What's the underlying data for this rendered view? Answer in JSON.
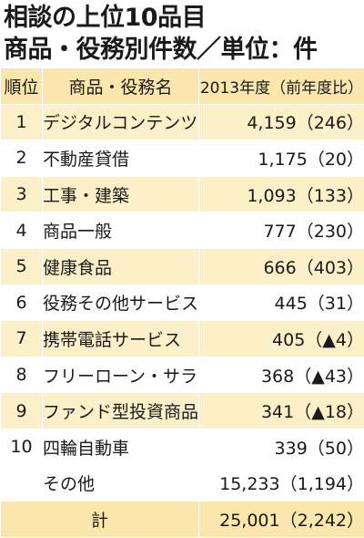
{
  "title": {
    "line1": "相談の上位10品目",
    "line2": "商品・役務別件数／単位：件"
  },
  "headers": {
    "rank": "順位",
    "item": "商品・役務名",
    "count": "2013年度（前年度比）"
  },
  "rows": [
    {
      "rank": "1",
      "item": "デジタルコンテンツ",
      "count": "4,159（246）"
    },
    {
      "rank": "2",
      "item": "不動産貸借",
      "count": "1,175（20）"
    },
    {
      "rank": "3",
      "item": "工事・建築",
      "count": "1,093（133）"
    },
    {
      "rank": "4",
      "item": "商品一般",
      "count": "777（230）"
    },
    {
      "rank": "5",
      "item": "健康食品",
      "count": "666（403）"
    },
    {
      "rank": "6",
      "item": "役務その他サービス",
      "count": "445（31）"
    },
    {
      "rank": "7",
      "item": "携帯電話サービス",
      "count": "405（▲4）"
    },
    {
      "rank": "8",
      "item": "フリーローン・サラ金",
      "count": "368（▲43）"
    },
    {
      "rank": "9",
      "item": "ファンド型投資商品",
      "count": "341（▲18）"
    },
    {
      "rank": "10",
      "item": "四輪自動車",
      "count": "339（50）"
    }
  ],
  "other": {
    "item": "その他",
    "count": "15,233（1,194）"
  },
  "total": {
    "label": "計",
    "count": "25,001（2,242）"
  },
  "colors": {
    "header_bg": "#fbe6ab",
    "stripe_bg": "#fcf0c9",
    "plain_bg": "#ffffff",
    "text": "#1a1a1a"
  }
}
